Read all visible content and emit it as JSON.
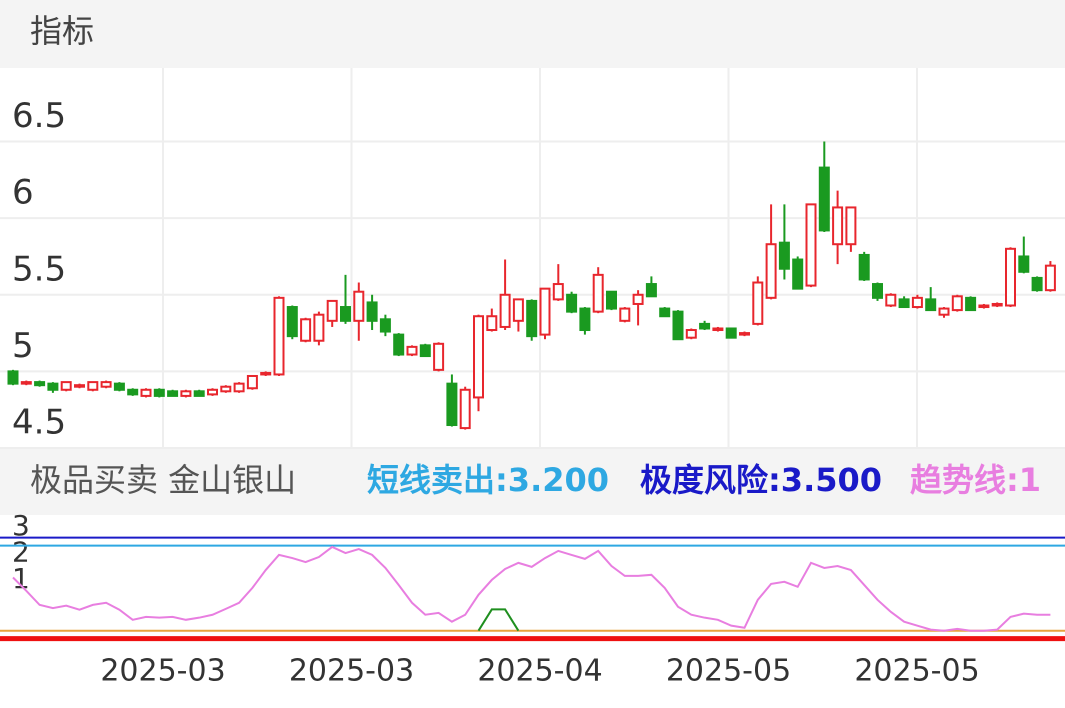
{
  "header": {
    "title": "指标"
  },
  "chart_data": [
    {
      "type": "candlestick",
      "up_color": "#e8262d",
      "down_color": "#1a9a20",
      "ylim": [
        4.5,
        6.98
      ],
      "yticks": [
        4.5,
        5,
        5.5,
        6,
        6.5
      ],
      "grid": true,
      "x_labels": [
        "2025-03",
        "2025-03",
        "2025-04",
        "2025-05",
        "2025-05"
      ],
      "candles": [
        [
          5.0,
          5.01,
          4.91,
          4.92
        ],
        [
          4.92,
          4.94,
          4.91,
          4.93
        ],
        [
          4.93,
          4.94,
          4.9,
          4.91
        ],
        [
          4.92,
          4.93,
          4.86,
          4.88
        ],
        [
          4.88,
          4.93,
          4.87,
          4.93
        ],
        [
          4.9,
          4.92,
          4.89,
          4.91
        ],
        [
          4.88,
          4.93,
          4.87,
          4.93
        ],
        [
          4.9,
          4.94,
          4.89,
          4.93
        ],
        [
          4.92,
          4.93,
          4.87,
          4.88
        ],
        [
          4.88,
          4.89,
          4.84,
          4.85
        ],
        [
          4.84,
          4.89,
          4.83,
          4.88
        ],
        [
          4.88,
          4.89,
          4.83,
          4.84
        ],
        [
          4.87,
          4.88,
          4.84,
          4.84
        ],
        [
          4.84,
          4.88,
          4.83,
          4.87
        ],
        [
          4.87,
          4.88,
          4.84,
          4.84
        ],
        [
          4.85,
          4.89,
          4.84,
          4.88
        ],
        [
          4.87,
          4.91,
          4.86,
          4.9
        ],
        [
          4.87,
          4.93,
          4.86,
          4.92
        ],
        [
          4.89,
          4.97,
          4.88,
          4.97
        ],
        [
          4.98,
          5.0,
          4.97,
          4.99
        ],
        [
          4.98,
          5.49,
          4.97,
          5.48
        ],
        [
          5.42,
          5.43,
          5.21,
          5.23
        ],
        [
          5.2,
          5.35,
          5.19,
          5.34
        ],
        [
          5.2,
          5.39,
          5.17,
          5.37
        ],
        [
          5.33,
          5.46,
          5.29,
          5.46
        ],
        [
          5.42,
          5.63,
          5.31,
          5.33
        ],
        [
          5.33,
          5.58,
          5.2,
          5.52
        ],
        [
          5.45,
          5.5,
          5.27,
          5.33
        ],
        [
          5.34,
          5.37,
          5.23,
          5.26
        ],
        [
          5.24,
          5.25,
          5.1,
          5.11
        ],
        [
          5.11,
          5.17,
          5.1,
          5.16
        ],
        [
          5.17,
          5.18,
          5.1,
          5.1
        ],
        [
          5.01,
          5.19,
          5.0,
          5.18
        ],
        [
          4.92,
          4.98,
          4.64,
          4.65
        ],
        [
          4.63,
          4.9,
          4.62,
          4.88
        ],
        [
          4.83,
          5.37,
          4.74,
          5.36
        ],
        [
          5.27,
          5.41,
          5.26,
          5.36
        ],
        [
          5.29,
          5.73,
          5.27,
          5.5
        ],
        [
          5.33,
          5.47,
          5.26,
          5.47
        ],
        [
          5.46,
          5.47,
          5.2,
          5.23
        ],
        [
          5.24,
          5.54,
          5.21,
          5.54
        ],
        [
          5.47,
          5.7,
          5.46,
          5.57
        ],
        [
          5.5,
          5.52,
          5.38,
          5.39
        ],
        [
          5.41,
          5.42,
          5.24,
          5.27
        ],
        [
          5.39,
          5.68,
          5.38,
          5.63
        ],
        [
          5.52,
          5.52,
          5.4,
          5.41
        ],
        [
          5.33,
          5.42,
          5.32,
          5.41
        ],
        [
          5.44,
          5.53,
          5.3,
          5.5
        ],
        [
          5.57,
          5.62,
          5.49,
          5.49
        ],
        [
          5.41,
          5.42,
          5.36,
          5.36
        ],
        [
          5.39,
          5.4,
          5.21,
          5.21
        ],
        [
          5.22,
          5.28,
          5.21,
          5.27
        ],
        [
          5.31,
          5.33,
          5.27,
          5.28
        ],
        [
          5.27,
          5.29,
          5.26,
          5.28
        ],
        [
          5.28,
          5.28,
          5.22,
          5.22
        ],
        [
          5.24,
          5.26,
          5.23,
          5.25
        ],
        [
          5.31,
          5.62,
          5.3,
          5.58
        ],
        [
          5.48,
          6.09,
          5.47,
          5.83
        ],
        [
          5.84,
          6.09,
          5.6,
          5.67
        ],
        [
          5.73,
          5.75,
          5.54,
          5.54
        ],
        [
          5.56,
          6.09,
          5.55,
          6.09
        ],
        [
          6.33,
          6.5,
          5.91,
          5.92
        ],
        [
          5.83,
          6.18,
          5.7,
          6.07
        ],
        [
          5.83,
          6.07,
          5.78,
          6.07
        ],
        [
          5.76,
          5.78,
          5.59,
          5.6
        ],
        [
          5.57,
          5.58,
          5.46,
          5.48
        ],
        [
          5.43,
          5.51,
          5.42,
          5.5
        ],
        [
          5.47,
          5.49,
          5.42,
          5.42
        ],
        [
          5.42,
          5.5,
          5.41,
          5.48
        ],
        [
          5.47,
          5.55,
          5.4,
          5.4
        ],
        [
          5.37,
          5.42,
          5.35,
          5.41
        ],
        [
          5.4,
          5.5,
          5.39,
          5.49
        ],
        [
          5.48,
          5.49,
          5.4,
          5.4
        ],
        [
          5.42,
          5.44,
          5.41,
          5.43
        ],
        [
          5.43,
          5.45,
          5.42,
          5.44
        ],
        [
          5.43,
          5.81,
          5.42,
          5.8
        ],
        [
          5.75,
          5.88,
          5.64,
          5.65
        ],
        [
          5.61,
          5.62,
          5.52,
          5.53
        ],
        [
          5.53,
          5.72,
          5.52,
          5.69
        ]
      ]
    },
    {
      "type": "line",
      "title": "极品买卖 金山银山",
      "ylim": [
        -0.5,
        4.35
      ],
      "yticks": [
        1,
        2,
        3
      ],
      "levels": [
        {
          "label": "短线卖出:3.200",
          "value": 3.2,
          "color": "#2ea8e2"
        },
        {
          "label": "极度风险:3.500",
          "value": 3.5,
          "color": "#1a1ac8"
        },
        {
          "value": 0,
          "color": "#e8a33c"
        },
        {
          "value": -0.3,
          "color": "#ee1111"
        }
      ],
      "series": [
        {
          "label": "趋势线:1",
          "color": "#e87ee0",
          "values": [
            2.0,
            1.5,
            0.97,
            0.85,
            0.94,
            0.79,
            0.97,
            1.05,
            0.79,
            0.41,
            0.52,
            0.49,
            0.52,
            0.41,
            0.49,
            0.6,
            0.82,
            1.05,
            1.61,
            2.28,
            2.85,
            2.73,
            2.58,
            2.77,
            3.15,
            2.92,
            3.07,
            2.85,
            2.36,
            1.72,
            1.05,
            0.6,
            0.67,
            0.34,
            0.6,
            1.35,
            1.91,
            2.32,
            2.55,
            2.4,
            2.73,
            3.0,
            2.85,
            2.7,
            3.0,
            2.43,
            2.06,
            2.06,
            2.1,
            1.61,
            0.9,
            0.6,
            0.49,
            0.41,
            0.19,
            0.11,
            1.16,
            1.76,
            1.84,
            1.65,
            2.55,
            2.36,
            2.43,
            2.28,
            1.72,
            1.16,
            0.71,
            0.34,
            0.19,
            0.04,
            0,
            0.07,
            0,
            0,
            0.04,
            0.52,
            0.64,
            0.6,
            0.6
          ]
        },
        {
          "color": "#1f8f1f",
          "values": [
            null,
            null,
            null,
            null,
            null,
            null,
            null,
            null,
            null,
            null,
            null,
            null,
            null,
            null,
            null,
            null,
            null,
            null,
            null,
            null,
            null,
            null,
            null,
            null,
            null,
            null,
            null,
            null,
            null,
            null,
            null,
            null,
            null,
            null,
            null,
            0,
            0.8,
            0.8,
            0,
            null,
            null,
            null,
            null,
            null,
            null,
            null,
            null,
            null,
            null,
            null,
            null,
            null,
            null,
            null,
            null,
            null,
            null,
            null,
            null,
            null,
            null,
            null,
            null,
            null,
            null,
            null,
            null,
            null,
            null,
            null,
            null,
            null,
            null,
            null,
            null,
            null,
            null,
            null,
            null
          ]
        }
      ]
    }
  ]
}
